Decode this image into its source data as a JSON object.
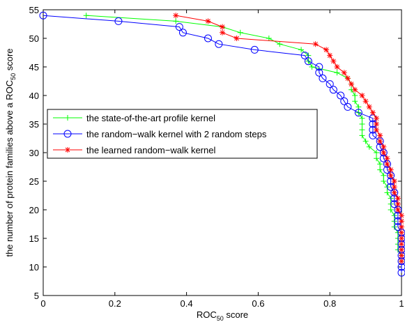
{
  "chart_data": {
    "type": "line",
    "x_label": [
      "ROC",
      "50",
      " score"
    ],
    "y_label": [
      "the number of protein families above a ROC",
      "50",
      " score"
    ],
    "xlim": [
      0,
      1
    ],
    "xticks": [
      0,
      0.2,
      0.4,
      0.6,
      0.8,
      1
    ],
    "ylim": [
      5,
      55
    ],
    "yticks": [
      5,
      10,
      15,
      20,
      25,
      30,
      35,
      40,
      45,
      50,
      55
    ],
    "legend": "west",
    "series": [
      {
        "name": "the state-of-the-art profile kernel",
        "color": "#00ff00",
        "marker": "+",
        "x": [
          0.12,
          0.37,
          0.5,
          0.55,
          0.63,
          0.66,
          0.72,
          0.74,
          0.74,
          0.75,
          0.82,
          0.85,
          0.86,
          0.86,
          0.87,
          0.87,
          0.88,
          0.88,
          0.89,
          0.89,
          0.89,
          0.89,
          0.9,
          0.91,
          0.93,
          0.93,
          0.94,
          0.94,
          0.95,
          0.95,
          0.96,
          0.96,
          0.97,
          0.97,
          0.97,
          0.98,
          0.98,
          0.98,
          0.99,
          0.99,
          0.99,
          0.99,
          1,
          1
        ],
        "values": [
          54,
          53,
          52,
          51,
          50,
          49,
          48,
          47,
          46,
          45,
          44,
          43,
          42,
          41,
          40,
          39,
          38,
          37,
          36,
          35,
          34,
          33,
          32,
          31,
          30,
          29,
          28,
          27,
          26,
          25,
          24,
          23,
          22,
          21,
          20,
          19,
          18,
          17,
          16,
          15,
          14,
          13,
          12,
          11
        ]
      },
      {
        "name": "the random−walk kernel with 2 random steps",
        "color": "#0000ff",
        "marker": "o",
        "x": [
          0,
          0.21,
          0.38,
          0.39,
          0.46,
          0.49,
          0.59,
          0.73,
          0.74,
          0.77,
          0.77,
          0.78,
          0.8,
          0.81,
          0.83,
          0.84,
          0.85,
          0.88,
          0.92,
          0.92,
          0.92,
          0.92,
          0.94,
          0.94,
          0.95,
          0.95,
          0.96,
          0.96,
          0.97,
          0.97,
          0.97,
          0.98,
          0.98,
          0.98,
          0.99,
          0.99,
          0.99,
          0.99,
          1,
          1,
          1,
          1,
          1,
          1,
          1,
          1
        ],
        "values": [
          54,
          53,
          52,
          51,
          50,
          49,
          48,
          47,
          46,
          45,
          44,
          43,
          42,
          41,
          40,
          39,
          38,
          37,
          36,
          35,
          34,
          33,
          32,
          31,
          30,
          29,
          28,
          27,
          26,
          25,
          24,
          23,
          22,
          21,
          20,
          19,
          18,
          17,
          16,
          15,
          14,
          13,
          12,
          11,
          10,
          9
        ]
      },
      {
        "name": "the learned random−walk kernel",
        "color": "#ff0000",
        "marker": "*",
        "x": [
          0.37,
          0.46,
          0.5,
          0.5,
          0.54,
          0.76,
          0.79,
          0.8,
          0.81,
          0.82,
          0.84,
          0.85,
          0.86,
          0.87,
          0.89,
          0.9,
          0.91,
          0.92,
          0.93,
          0.93,
          0.93,
          0.94,
          0.94,
          0.95,
          0.95,
          0.96,
          0.96,
          0.97,
          0.97,
          0.98,
          0.98,
          0.98,
          0.99,
          0.99,
          0.99,
          1,
          1,
          1,
          1,
          1,
          1,
          1,
          1,
          1
        ],
        "values": [
          54,
          53,
          52,
          51,
          50,
          49,
          48,
          47,
          46,
          45,
          44,
          43,
          42,
          41,
          40,
          39,
          38,
          37,
          36,
          35,
          34,
          33,
          32,
          31,
          30,
          29,
          28,
          27,
          26,
          25,
          24,
          23,
          22,
          21,
          20,
          19,
          18,
          17,
          16,
          15,
          14,
          13,
          12,
          11
        ]
      }
    ]
  }
}
